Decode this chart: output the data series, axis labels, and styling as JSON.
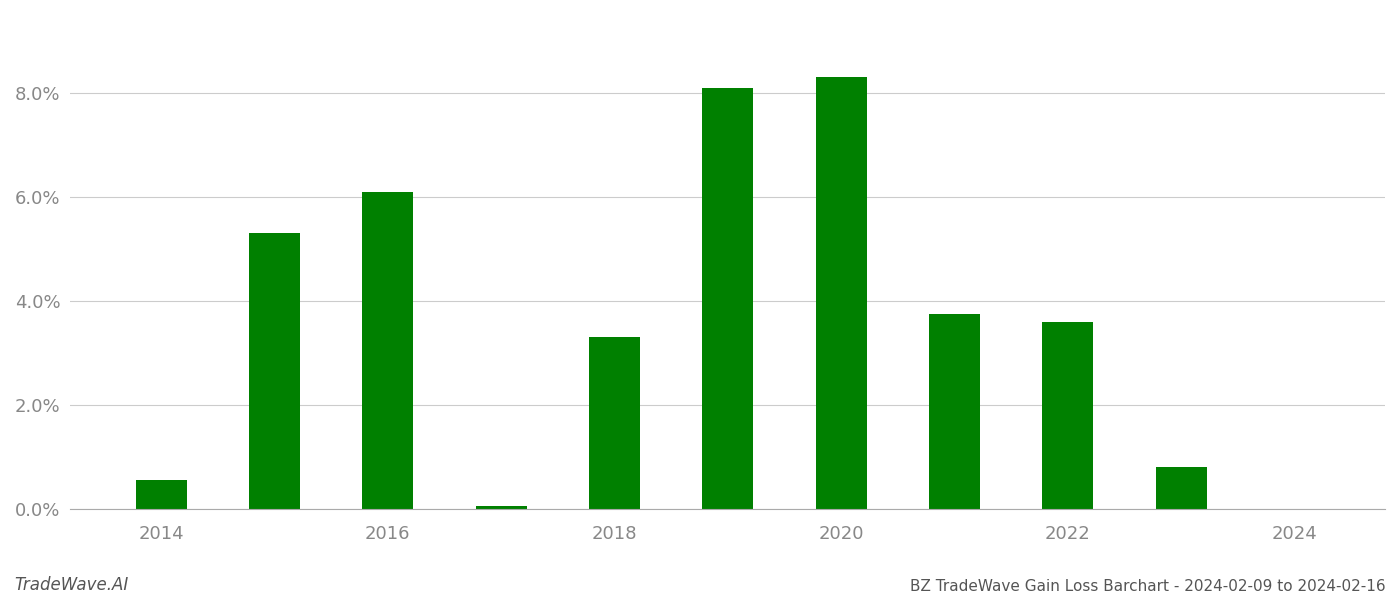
{
  "years": [
    2014,
    2015,
    2016,
    2017,
    2018,
    2019,
    2020,
    2021,
    2022,
    2023
  ],
  "values": [
    0.0055,
    0.053,
    0.061,
    0.0005,
    0.033,
    0.081,
    0.083,
    0.0375,
    0.036,
    0.008
  ],
  "bar_color": "#008000",
  "background_color": "#ffffff",
  "ylabel_color": "#888888",
  "xlabel_color": "#888888",
  "grid_color": "#cccccc",
  "title": "BZ TradeWave Gain Loss Barchart - 2024-02-09 to 2024-02-16",
  "watermark": "TradeWave.AI",
  "ylim": [
    0,
    0.095
  ],
  "yticks": [
    0.0,
    0.02,
    0.04,
    0.06,
    0.08
  ],
  "xticks": [
    2014,
    2016,
    2018,
    2020,
    2022,
    2024
  ],
  "bar_width": 0.45,
  "xlim": [
    2013.2,
    2024.8
  ]
}
